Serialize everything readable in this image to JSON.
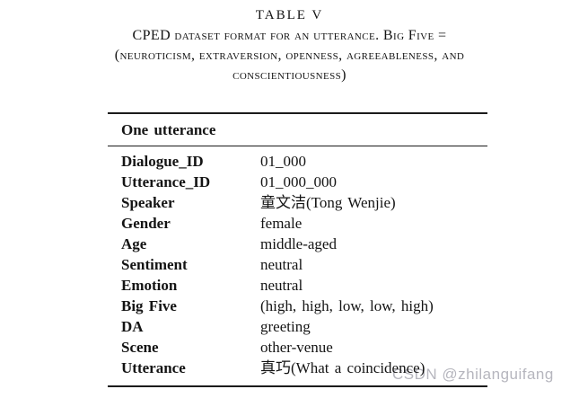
{
  "caption": {
    "label": "TABLE V",
    "lines": [
      "CPED dataset format for an utterance. Big Five =",
      "(neuroticism, extraversion, openness, agreeableness, and",
      "conscientiousness)"
    ]
  },
  "table": {
    "header": "One utterance",
    "rows": [
      {
        "field": "Dialogue_ID",
        "value": "01_000"
      },
      {
        "field": "Utterance_ID",
        "value": "01_000_000"
      },
      {
        "field": "Speaker",
        "value": "童文洁(Tong Wenjie)"
      },
      {
        "field": "Gender",
        "value": "female"
      },
      {
        "field": "Age",
        "value": "middle-aged"
      },
      {
        "field": "Sentiment",
        "value": "neutral"
      },
      {
        "field": "Emotion",
        "value": "neutral"
      },
      {
        "field": "Big Five",
        "value": "(high, high, low, low, high)"
      },
      {
        "field": "DA",
        "value": "greeting"
      },
      {
        "field": "Scene",
        "value": "other-venue"
      },
      {
        "field": "Utterance",
        "value": "真巧(What a coincidence)"
      }
    ]
  },
  "watermark": {
    "text": "CSDN @zhilanguifang",
    "color": "#b6b6be"
  },
  "colors": {
    "text": "#141414",
    "rule": "#1b1b1b",
    "background": "#ffffff"
  }
}
